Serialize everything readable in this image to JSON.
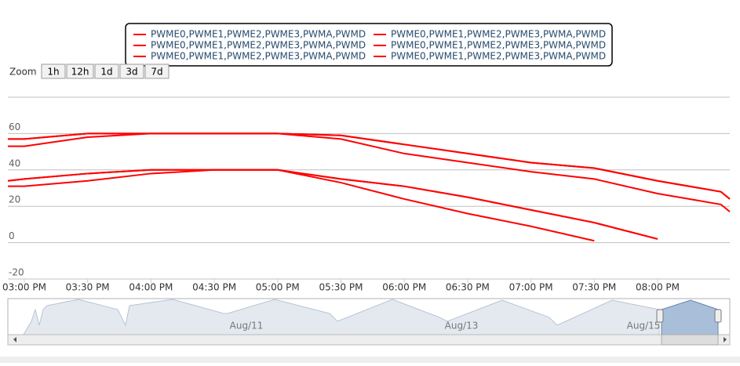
{
  "chart_data": {
    "type": "line",
    "zoom_label": "Zoom",
    "zoom_buttons": [
      "1h",
      "12h",
      "1d",
      "3d",
      "7d"
    ],
    "navigator_labels": [
      "Aug/11",
      "Aug/13",
      "Aug/15"
    ],
    "x": [
      14.87,
      15,
      15.5,
      16,
      16.5,
      17,
      17.5,
      18,
      18.5,
      19,
      19.5,
      20,
      20.5,
      20.57
    ],
    "xlim": [
      14.87,
      20.57
    ],
    "xticks": [
      {
        "value": 15,
        "label": "03:00 PM"
      },
      {
        "value": 15.5,
        "label": "03:30 PM"
      },
      {
        "value": 16,
        "label": "04:00 PM"
      },
      {
        "value": 16.5,
        "label": "04:30 PM"
      },
      {
        "value": 17,
        "label": "05:00 PM"
      },
      {
        "value": 17.5,
        "label": "05:30 PM"
      },
      {
        "value": 18,
        "label": "06:00 PM"
      },
      {
        "value": 18.5,
        "label": "06:30 PM"
      },
      {
        "value": 19,
        "label": "07:00 PM"
      },
      {
        "value": 19.5,
        "label": "07:30 PM"
      },
      {
        "value": 20,
        "label": "08:00 PM"
      }
    ],
    "ylim": [
      -20,
      80
    ],
    "yticks": [
      -20,
      0,
      20,
      40,
      60
    ],
    "grid": true,
    "series": [
      {
        "name": "PWME0,PWME1,PWME2,PWME3,PWMA,PWMD",
        "color": "#ff0000",
        "values": [
          57,
          57,
          60,
          60,
          60,
          60,
          59,
          54,
          49,
          44,
          41,
          34,
          28,
          24
        ]
      },
      {
        "name": "PWME0,PWME1,PWME2,PWME3,PWMA,PWMD",
        "color": "#ff0000",
        "values": [
          53,
          53,
          58,
          60,
          60,
          60,
          57,
          49,
          44,
          39,
          35,
          27,
          21,
          17
        ]
      },
      {
        "name": "PWME0,PWME1,PWME2,PWME3,PWMA,PWMD",
        "color": "#ff0000",
        "values": [
          34,
          35,
          38,
          40,
          40,
          40,
          35,
          31,
          25,
          18,
          11,
          2,
          null,
          null
        ]
      },
      {
        "name": "PWME0,PWME1,PWME2,PWME3,PWMA,PWMD",
        "color": "#ff0000",
        "values": [
          31,
          31,
          34,
          38,
          40,
          40,
          33,
          24,
          16,
          9,
          1,
          null,
          null,
          null
        ]
      },
      {
        "name": "PWME0,PWME1,PWME2,PWME3,PWMA,PWMD",
        "color": "#ff0000",
        "values": [
          57,
          57,
          60,
          60,
          60,
          60,
          59,
          54,
          49,
          44,
          41,
          34,
          28,
          24
        ]
      },
      {
        "name": "PWME0,PWME1,PWME2,PWME3,PWMA,PWMD",
        "color": "#ff0000",
        "values": [
          34,
          35,
          38,
          40,
          40,
          40,
          35,
          31,
          25,
          18,
          11,
          2,
          null,
          null
        ]
      }
    ]
  }
}
